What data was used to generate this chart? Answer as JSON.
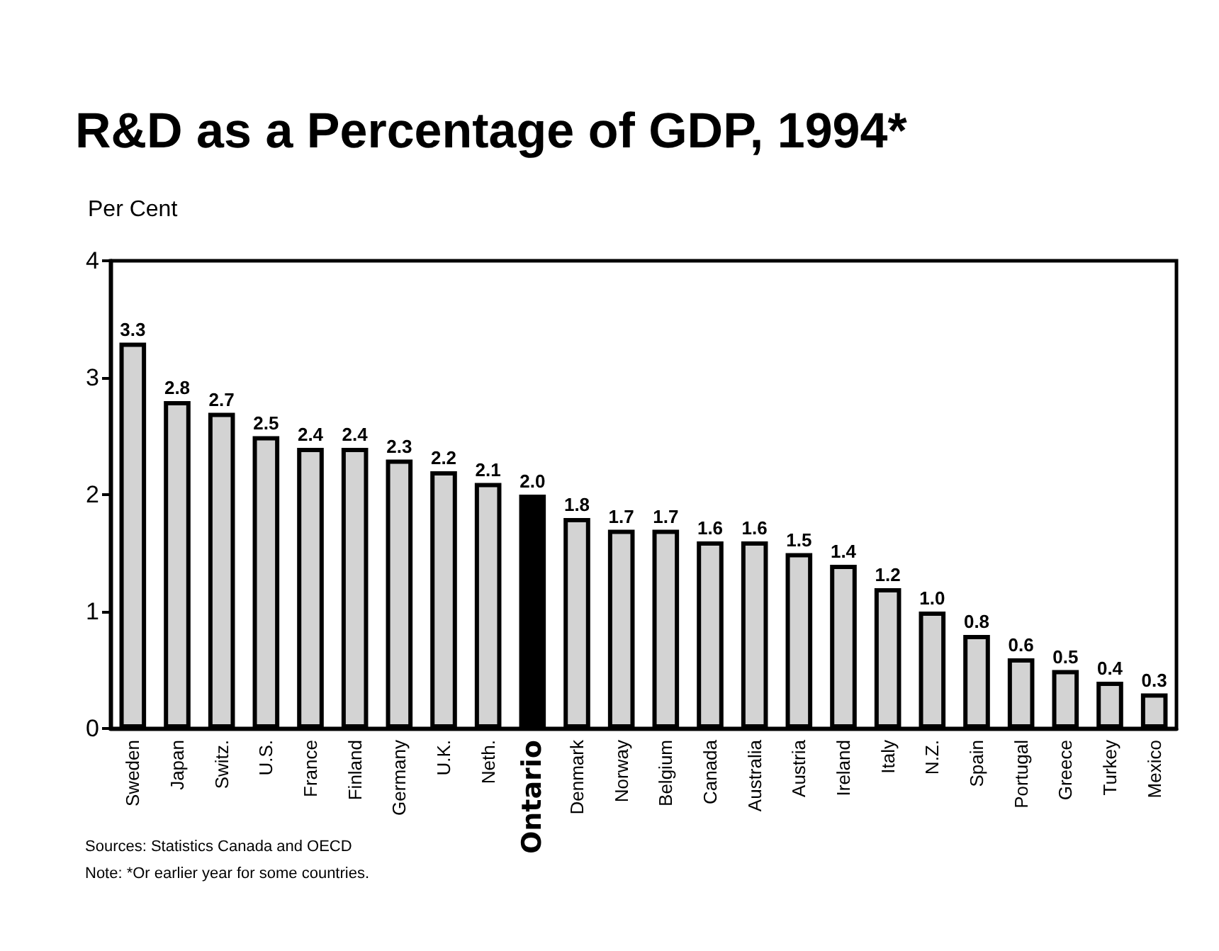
{
  "chart_data": {
    "type": "bar",
    "title": "R&D as a Percentage of GDP, 1994*",
    "ylabel": "Per Cent",
    "categories": [
      "Sweden",
      "Japan",
      "Switz.",
      "U.S.",
      "France",
      "Finland",
      "Germany",
      "U.K.",
      "Neth.",
      "Ontario",
      "Denmark",
      "Norway",
      "Belgium",
      "Canada",
      "Australia",
      "Austria",
      "Ireland",
      "Italy",
      "N.Z.",
      "Spain",
      "Portugal",
      "Greece",
      "Turkey",
      "Mexico"
    ],
    "values": [
      3.3,
      2.8,
      2.7,
      2.5,
      2.4,
      2.4,
      2.3,
      2.2,
      2.1,
      2.0,
      1.8,
      1.7,
      1.7,
      1.6,
      1.6,
      1.5,
      1.4,
      1.2,
      1.0,
      0.8,
      0.6,
      0.5,
      0.4,
      0.3
    ],
    "colors": [
      "#d3d3d3",
      "#d3d3d3",
      "#d3d3d3",
      "#d3d3d3",
      "#d3d3d3",
      "#d3d3d3",
      "#d3d3d3",
      "#d3d3d3",
      "#d3d3d3",
      "#000000",
      "#d3d3d3",
      "#d3d3d3",
      "#d3d3d3",
      "#d3d3d3",
      "#d3d3d3",
      "#d3d3d3",
      "#d3d3d3",
      "#d3d3d3",
      "#d3d3d3",
      "#d3d3d3",
      "#d3d3d3",
      "#d3d3d3",
      "#d3d3d3",
      "#d3d3d3"
    ],
    "value_labels": [
      "3.3",
      "2.8",
      "2.7",
      "2.5",
      "2.4",
      "2.4",
      "2.3",
      "2.2",
      "2.1",
      "2.0",
      "1.8",
      "1.7",
      "1.7",
      "1.6",
      "1.6",
      "1.5",
      "1.4",
      "1.2",
      "1.0",
      "0.8",
      "0.6",
      "0.5",
      "0.4",
      "0.3"
    ],
    "ylim": [
      0,
      4
    ],
    "yticks": [
      0,
      1,
      2,
      3,
      4
    ],
    "grid": false,
    "annotations": [
      "Sources: Statistics Canada and OECD",
      "Note: *Or earlier year for some countries."
    ]
  }
}
